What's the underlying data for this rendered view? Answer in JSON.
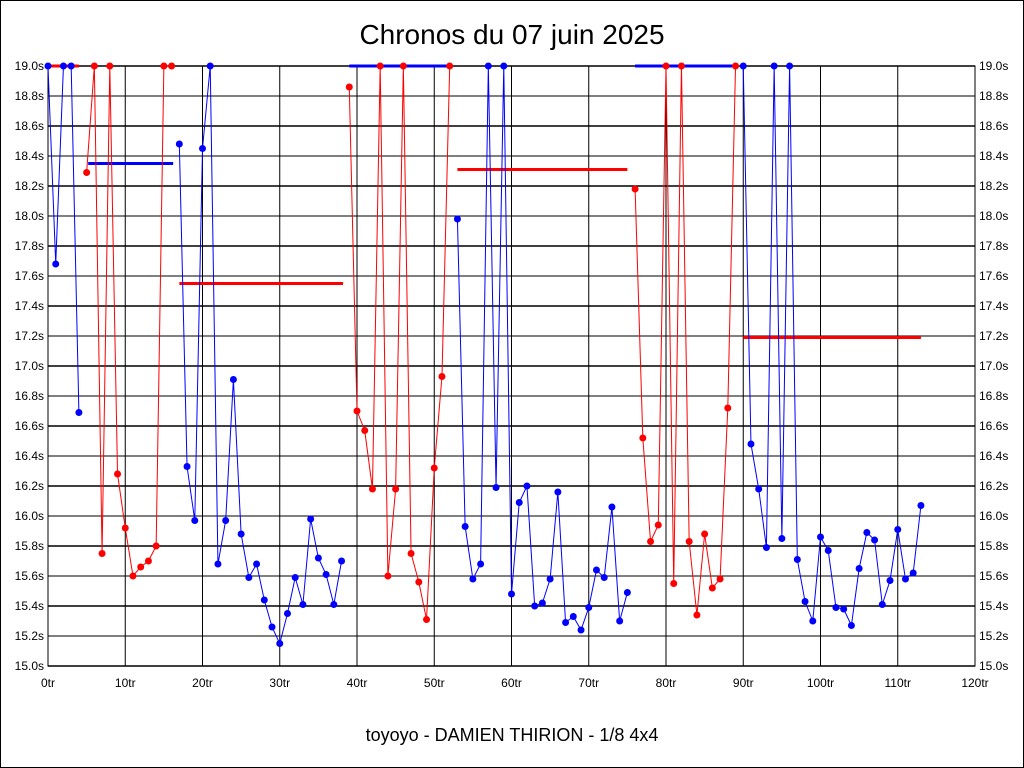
{
  "chart_data": {
    "type": "line",
    "title": "Chronos du 07 juin 2025",
    "xlabel": "toyoyo - DAMIEN THIRION - 1/8 4x4",
    "ylabel": "",
    "xlim": [
      0,
      120
    ],
    "ylim": [
      15.0,
      19.0
    ],
    "x_ticks": [
      0,
      10,
      20,
      30,
      40,
      50,
      60,
      70,
      80,
      90,
      100,
      110,
      120
    ],
    "x_tick_suffix": "tr",
    "y_ticks": [
      15.0,
      15.2,
      15.4,
      15.6,
      15.8,
      16.0,
      16.2,
      16.4,
      16.6,
      16.8,
      17.0,
      17.2,
      17.4,
      17.6,
      17.8,
      18.0,
      18.2,
      18.4,
      18.6,
      18.8,
      19.0
    ],
    "y_tick_suffix": "s",
    "grid": true,
    "colors": {
      "blue": "#0000ff",
      "red": "#ff0000"
    },
    "series": [
      {
        "name": "seg1",
        "color": "blue",
        "start": 0,
        "values": [
          19.0,
          17.68,
          19.0,
          19.0,
          16.69
        ],
        "avg": 19.0,
        "avg_color": "red",
        "avg_range": [
          0,
          4
        ]
      },
      {
        "name": "seg2",
        "color": "red",
        "start": 5,
        "values": [
          18.29,
          19.0,
          15.75,
          19.0,
          16.28,
          15.92,
          15.6,
          15.66,
          15.7,
          15.8,
          19.0,
          19.0
        ],
        "avg": 18.35,
        "avg_color": "blue",
        "avg_range": [
          5.2,
          16.2
        ]
      },
      {
        "name": "seg3",
        "color": "blue",
        "start": 17,
        "values": [
          18.48,
          16.33,
          15.97,
          18.45,
          19.0,
          15.68,
          15.97,
          16.91,
          15.88,
          15.59,
          15.68,
          15.44,
          15.26,
          15.15,
          15.35,
          15.59,
          15.41,
          15.98,
          15.72,
          15.61,
          15.41,
          15.7
        ],
        "avg": 17.55,
        "avg_color": "red",
        "avg_range": [
          17,
          38.2
        ]
      },
      {
        "name": "seg4",
        "color": "red",
        "start": 39,
        "values": [
          18.86,
          16.7,
          16.57,
          16.18,
          19.0,
          15.6,
          16.18,
          19.0,
          15.75,
          15.56,
          15.31,
          16.32,
          16.93,
          19.0
        ],
        "avg": 19.0,
        "avg_color": "blue",
        "avg_range": [
          39,
          52
        ]
      },
      {
        "name": "seg5",
        "color": "blue",
        "start": 53,
        "values": [
          17.98,
          15.93,
          15.58,
          15.68,
          19.0,
          16.19,
          19.0,
          15.48,
          16.09,
          16.2,
          15.4,
          15.42,
          15.58,
          16.16,
          15.29,
          15.33,
          15.24,
          15.39,
          15.64,
          15.59,
          16.06,
          15.3,
          15.49
        ],
        "avg": 18.31,
        "avg_color": "red",
        "avg_range": [
          53,
          75
        ]
      },
      {
        "name": "seg6",
        "color": "red",
        "start": 76,
        "values": [
          18.18,
          16.52,
          15.83,
          15.94,
          19.0,
          15.55,
          19.0,
          15.83,
          15.34,
          15.88,
          15.52,
          15.58,
          16.72,
          19.0
        ],
        "avg": 19.0,
        "avg_color": "blue",
        "avg_range": [
          76,
          89
        ]
      },
      {
        "name": "seg7",
        "color": "blue",
        "start": 90,
        "values": [
          19.0,
          16.48,
          16.18,
          15.79,
          19.0,
          15.85,
          19.0,
          15.71,
          15.43,
          15.3,
          15.86,
          15.77,
          15.39,
          15.38,
          15.27,
          15.65,
          15.89,
          15.84,
          15.41,
          15.57,
          15.91,
          15.58,
          15.62,
          16.07
        ],
        "avg": 17.19,
        "avg_color": "red",
        "avg_range": [
          90,
          113
        ]
      }
    ]
  }
}
